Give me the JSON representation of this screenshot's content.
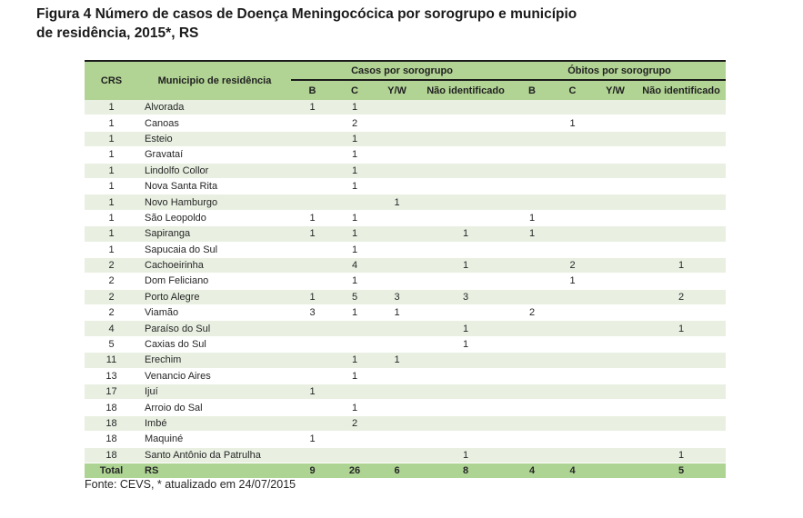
{
  "figure": {
    "title_line1": "Figura 4 Número de casos de Doença Meningocócica por sorogrupo e município",
    "title_line2": "de residência, 2015*, RS",
    "source_note": "Fonte: CEVS, * atualizado em 24/07/2015"
  },
  "colors": {
    "header_green": "#b1d394",
    "total_row_green": "#aed494",
    "row_stripe_green": "#e9f0e2",
    "row_white": "#ffffff",
    "border_dark": "#1b1b1b"
  },
  "table": {
    "column_headers": {
      "crs": "CRS",
      "municipality": "Municipio de residência",
      "cases_group": "Casos por sorogrupo",
      "deaths_group": "Óbitos por sorogrupo",
      "serogroups": [
        "B",
        "C",
        "Y/W",
        "Não identificado"
      ]
    },
    "rows": [
      {
        "crs": "1",
        "municipality": "Alvorada",
        "cases": [
          "1",
          "1",
          "",
          ""
        ],
        "deaths": [
          "",
          "",
          "",
          ""
        ]
      },
      {
        "crs": "1",
        "municipality": "Canoas",
        "cases": [
          "",
          "2",
          "",
          ""
        ],
        "deaths": [
          "",
          "1",
          "",
          ""
        ]
      },
      {
        "crs": "1",
        "municipality": "Esteio",
        "cases": [
          "",
          "1",
          "",
          ""
        ],
        "deaths": [
          "",
          "",
          "",
          ""
        ]
      },
      {
        "crs": "1",
        "municipality": "Gravataí",
        "cases": [
          "",
          "1",
          "",
          ""
        ],
        "deaths": [
          "",
          "",
          "",
          ""
        ]
      },
      {
        "crs": "1",
        "municipality": "Lindolfo Collor",
        "cases": [
          "",
          "1",
          "",
          ""
        ],
        "deaths": [
          "",
          "",
          "",
          ""
        ]
      },
      {
        "crs": "1",
        "municipality": "Nova Santa Rita",
        "cases": [
          "",
          "1",
          "",
          ""
        ],
        "deaths": [
          "",
          "",
          "",
          ""
        ]
      },
      {
        "crs": "1",
        "municipality": "Novo Hamburgo",
        "cases": [
          "",
          "",
          "1",
          ""
        ],
        "deaths": [
          "",
          "",
          "",
          ""
        ]
      },
      {
        "crs": "1",
        "municipality": "São Leopoldo",
        "cases": [
          "1",
          "1",
          "",
          ""
        ],
        "deaths": [
          "1",
          "",
          "",
          ""
        ]
      },
      {
        "crs": "1",
        "municipality": "Sapiranga",
        "cases": [
          "1",
          "1",
          "",
          "1"
        ],
        "deaths": [
          "1",
          "",
          "",
          ""
        ]
      },
      {
        "crs": "1",
        "municipality": "Sapucaia do Sul",
        "cases": [
          "",
          "1",
          "",
          ""
        ],
        "deaths": [
          "",
          "",
          "",
          ""
        ]
      },
      {
        "crs": "2",
        "municipality": "Cachoeirinha",
        "cases": [
          "",
          "4",
          "",
          "1"
        ],
        "deaths": [
          "",
          "2",
          "",
          "1"
        ]
      },
      {
        "crs": "2",
        "municipality": "Dom Feliciano",
        "cases": [
          "",
          "1",
          "",
          ""
        ],
        "deaths": [
          "",
          "1",
          "",
          ""
        ]
      },
      {
        "crs": "2",
        "municipality": "Porto Alegre",
        "cases": [
          "1",
          "5",
          "3",
          "3"
        ],
        "deaths": [
          "",
          "",
          "",
          "2"
        ]
      },
      {
        "crs": "2",
        "municipality": "Viamão",
        "cases": [
          "3",
          "1",
          "1",
          ""
        ],
        "deaths": [
          "2",
          "",
          "",
          ""
        ]
      },
      {
        "crs": "4",
        "municipality": "Paraíso do Sul",
        "cases": [
          "",
          "",
          "",
          "1"
        ],
        "deaths": [
          "",
          "",
          "",
          "1"
        ]
      },
      {
        "crs": "5",
        "municipality": "Caxias do Sul",
        "cases": [
          "",
          "",
          "",
          "1"
        ],
        "deaths": [
          "",
          "",
          "",
          ""
        ]
      },
      {
        "crs": "11",
        "municipality": "Erechim",
        "cases": [
          "",
          "1",
          "1",
          ""
        ],
        "deaths": [
          "",
          "",
          "",
          ""
        ]
      },
      {
        "crs": "13",
        "municipality": "Venancio Aires",
        "cases": [
          "",
          "1",
          "",
          ""
        ],
        "deaths": [
          "",
          "",
          "",
          ""
        ]
      },
      {
        "crs": "17",
        "municipality": "Ijuí",
        "cases": [
          "1",
          "",
          "",
          ""
        ],
        "deaths": [
          "",
          "",
          "",
          ""
        ]
      },
      {
        "crs": "18",
        "municipality": "Arroio do Sal",
        "cases": [
          "",
          "1",
          "",
          ""
        ],
        "deaths": [
          "",
          "",
          "",
          ""
        ]
      },
      {
        "crs": "18",
        "municipality": "Imbé",
        "cases": [
          "",
          "2",
          "",
          ""
        ],
        "deaths": [
          "",
          "",
          "",
          ""
        ]
      },
      {
        "crs": "18",
        "municipality": "Maquiné",
        "cases": [
          "1",
          "",
          "",
          ""
        ],
        "deaths": [
          "",
          "",
          "",
          ""
        ]
      },
      {
        "crs": "18",
        "municipality": "Santo Antônio da Patrulha",
        "cases": [
          "",
          "",
          "",
          "1"
        ],
        "deaths": [
          "",
          "",
          "",
          "1"
        ]
      }
    ],
    "total_row": {
      "crs": "Total",
      "municipality": "RS",
      "cases": [
        "9",
        "26",
        "6",
        "8"
      ],
      "deaths": [
        "4",
        "4",
        "",
        "5"
      ]
    }
  }
}
